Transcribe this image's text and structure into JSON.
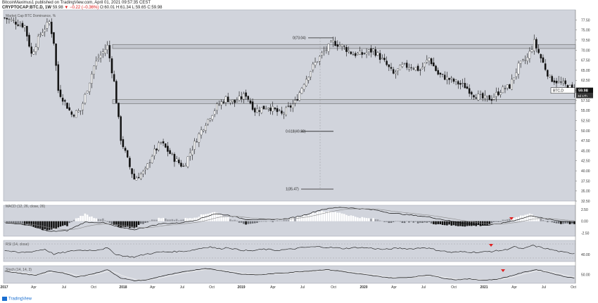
{
  "header": {
    "author": "BitcoinMaximus1",
    "published_text": "published on TradingView.com, April 01, 2021 09:57:35 CEST",
    "symbol": "CRYPTOCAP:BTC.D, 1W",
    "last_price": "59.98",
    "change": "▼ −0.22 (−0.36%)",
    "ohlc": "O:60.01 H:61.34 L:59.65 C:59.98"
  },
  "footer": {
    "brand": "TradingView"
  },
  "chart_data": [
    {
      "type": "candlestick",
      "title": "Market Cap BTC Dominance, %",
      "xlabel": "",
      "ylabel": "",
      "ylim": [
        32.5,
        80
      ],
      "y_ticks": [
        "77.50",
        "75.00",
        "72.50",
        "70.00",
        "67.50",
        "65.00",
        "62.50",
        "60.00",
        "57.50",
        "55.00",
        "52.50",
        "50.00",
        "47.50",
        "45.00",
        "42.50",
        "40.00",
        "37.50",
        "35.00",
        "32.50"
      ],
      "x_ticks": [
        "2017",
        "Apr",
        "Jul",
        "Oct",
        "2018",
        "Apr",
        "Jul",
        "Oct",
        "2019",
        "Apr",
        "Jul",
        "Oct",
        "2020",
        "Apr",
        "Jul",
        "Oct",
        "2021",
        "Apr",
        "Jul",
        "Oct"
      ],
      "last_value": "59.98",
      "price_label": "BTC.D",
      "countdown": "3d 17h",
      "horizontal_zones": [
        {
          "from": 70.4,
          "to": 71.4
        },
        {
          "from": 56.7,
          "to": 57.7
        }
      ],
      "fib_levels": [
        {
          "label": "0(73.04)",
          "value": 73.04
        },
        {
          "label": "0.618(49.82)",
          "value": 49.82
        },
        {
          "label": "1(35.47)",
          "value": 35.47
        }
      ],
      "close_anchors": [
        [
          0,
          78
        ],
        [
          9,
          76
        ],
        [
          12,
          69
        ],
        [
          16,
          74
        ],
        [
          20,
          77
        ],
        [
          22,
          72
        ],
        [
          24,
          60
        ],
        [
          30,
          54
        ],
        [
          34,
          55
        ],
        [
          40,
          66
        ],
        [
          42,
          68
        ],
        [
          46,
          71
        ],
        [
          49,
          62
        ],
        [
          52,
          48
        ],
        [
          56,
          41
        ],
        [
          58,
          38
        ],
        [
          63,
          40
        ],
        [
          66,
          44
        ],
        [
          70,
          47
        ],
        [
          76,
          43
        ],
        [
          80,
          41
        ],
        [
          86,
          48
        ],
        [
          90,
          52
        ],
        [
          95,
          56
        ],
        [
          99,
          58
        ],
        [
          103,
          57
        ],
        [
          108,
          59
        ],
        [
          112,
          55
        ],
        [
          118,
          56
        ],
        [
          124,
          54
        ],
        [
          130,
          57
        ],
        [
          134,
          62
        ],
        [
          138,
          66
        ],
        [
          142,
          69
        ],
        [
          147,
          72
        ],
        [
          151,
          71
        ],
        [
          156,
          69
        ],
        [
          160,
          69
        ],
        [
          165,
          70
        ],
        [
          170,
          67
        ],
        [
          174,
          64
        ],
        [
          178,
          66
        ],
        [
          182,
          66
        ],
        [
          186,
          65
        ],
        [
          190,
          68
        ],
        [
          194,
          64
        ],
        [
          198,
          63
        ],
        [
          202,
          62
        ],
        [
          206,
          61
        ],
        [
          210,
          59
        ],
        [
          214,
          58
        ],
        [
          218,
          58
        ],
        [
          222,
          60
        ],
        [
          226,
          61
        ],
        [
          230,
          66
        ],
        [
          234,
          68
        ],
        [
          237,
          72
        ],
        [
          240,
          68
        ],
        [
          244,
          63
        ],
        [
          248,
          62
        ],
        [
          252,
          61
        ],
        [
          255,
          60
        ]
      ]
    },
    {
      "type": "line",
      "title": "MACD (12, 26, close, 26)",
      "y_ticks": [
        "2.50",
        "0.00",
        "-2.50"
      ],
      "ylim": [
        -3.2,
        3.4
      ],
      "anchors": [
        [
          0,
          -0.3
        ],
        [
          10,
          -0.8
        ],
        [
          20,
          -2.2
        ],
        [
          28,
          -2.0
        ],
        [
          36,
          -0.2
        ],
        [
          44,
          -0.3
        ],
        [
          52,
          -1.4
        ],
        [
          58,
          -1.8
        ],
        [
          64,
          -1.2
        ],
        [
          70,
          -0.5
        ],
        [
          78,
          -0.4
        ],
        [
          86,
          0.3
        ],
        [
          94,
          1.6
        ],
        [
          100,
          1.3
        ],
        [
          108,
          0.4
        ],
        [
          116,
          0.3
        ],
        [
          126,
          0.5
        ],
        [
          134,
          1.3
        ],
        [
          142,
          2.5
        ],
        [
          150,
          3.0
        ],
        [
          158,
          2.7
        ],
        [
          166,
          2.4
        ],
        [
          172,
          1.8
        ],
        [
          180,
          1.4
        ],
        [
          190,
          0.9
        ],
        [
          200,
          0.0
        ],
        [
          208,
          -0.6
        ],
        [
          216,
          -0.9
        ],
        [
          222,
          -0.5
        ],
        [
          230,
          0.4
        ],
        [
          236,
          1.2
        ],
        [
          242,
          0.5
        ],
        [
          248,
          0.1
        ],
        [
          255,
          -0.2
        ]
      ]
    },
    {
      "type": "line",
      "title": "RSI (14, close)",
      "y_ticks": [
        "40.00"
      ],
      "ylim": [
        20,
        80
      ],
      "anchors": [
        [
          0,
          52
        ],
        [
          6,
          45
        ],
        [
          12,
          48
        ],
        [
          18,
          55
        ],
        [
          22,
          41
        ],
        [
          26,
          45
        ],
        [
          32,
          52
        ],
        [
          40,
          52
        ],
        [
          46,
          58
        ],
        [
          50,
          40
        ],
        [
          54,
          35
        ],
        [
          58,
          33
        ],
        [
          64,
          42
        ],
        [
          70,
          47
        ],
        [
          76,
          48
        ],
        [
          82,
          50
        ],
        [
          88,
          58
        ],
        [
          92,
          62
        ],
        [
          96,
          56
        ],
        [
          100,
          60
        ],
        [
          104,
          54
        ],
        [
          110,
          50
        ],
        [
          116,
          55
        ],
        [
          122,
          52
        ],
        [
          128,
          55
        ],
        [
          134,
          60
        ],
        [
          140,
          62
        ],
        [
          146,
          60
        ],
        [
          152,
          57
        ],
        [
          158,
          60
        ],
        [
          164,
          58
        ],
        [
          170,
          54
        ],
        [
          176,
          58
        ],
        [
          182,
          56
        ],
        [
          188,
          60
        ],
        [
          194,
          52
        ],
        [
          200,
          46
        ],
        [
          206,
          48
        ],
        [
          212,
          46
        ],
        [
          218,
          49
        ],
        [
          224,
          53
        ],
        [
          228,
          62
        ],
        [
          232,
          55
        ],
        [
          236,
          66
        ],
        [
          240,
          60
        ],
        [
          246,
          52
        ],
        [
          250,
          46
        ],
        [
          255,
          43
        ]
      ]
    },
    {
      "type": "line",
      "title": "Stoch (14, 14, 3)",
      "y_ticks": [
        "50.00"
      ],
      "ylim": [
        0,
        100
      ],
      "anchors": [
        [
          0,
          70
        ],
        [
          8,
          55
        ],
        [
          14,
          45
        ],
        [
          20,
          70
        ],
        [
          26,
          60
        ],
        [
          32,
          35
        ],
        [
          40,
          55
        ],
        [
          46,
          78
        ],
        [
          52,
          30
        ],
        [
          58,
          15
        ],
        [
          64,
          20
        ],
        [
          70,
          40
        ],
        [
          76,
          55
        ],
        [
          82,
          70
        ],
        [
          90,
          85
        ],
        [
          98,
          70
        ],
        [
          106,
          52
        ],
        [
          114,
          48
        ],
        [
          120,
          55
        ],
        [
          128,
          62
        ],
        [
          136,
          70
        ],
        [
          144,
          78
        ],
        [
          150,
          70
        ],
        [
          156,
          58
        ],
        [
          162,
          48
        ],
        [
          168,
          38
        ],
        [
          174,
          30
        ],
        [
          182,
          35
        ],
        [
          190,
          48
        ],
        [
          196,
          30
        ],
        [
          202,
          20
        ],
        [
          208,
          25
        ],
        [
          214,
          18
        ],
        [
          220,
          22
        ],
        [
          226,
          40
        ],
        [
          232,
          62
        ],
        [
          238,
          78
        ],
        [
          244,
          60
        ],
        [
          250,
          40
        ],
        [
          255,
          30
        ]
      ]
    }
  ]
}
